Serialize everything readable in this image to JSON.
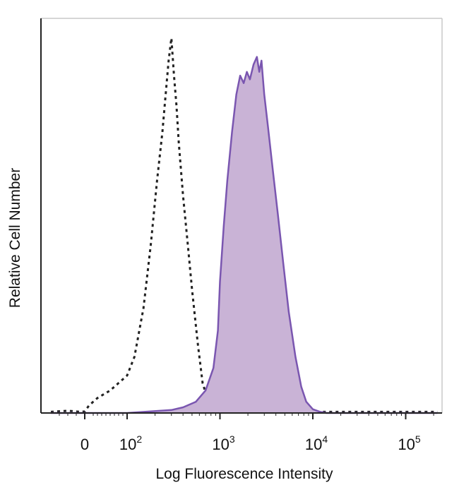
{
  "chart_data": {
    "type": "area",
    "xlabel": "Log Fluorescence Intensity",
    "ylabel": "Relative Cell Number",
    "x_scale": "biexponential (0, then log decades)",
    "xlim": [
      -80,
      220000
    ],
    "ylim": [
      0,
      100
    ],
    "grid": false,
    "legend": "none",
    "x_ticks": [
      {
        "value": 0,
        "base": "0",
        "exp": ""
      },
      {
        "value": 100,
        "base": "10",
        "exp": "2"
      },
      {
        "value": 1000,
        "base": "10",
        "exp": "3"
      },
      {
        "value": 10000,
        "base": "10",
        "exp": "4"
      },
      {
        "value": 100000,
        "base": "10",
        "exp": "5"
      }
    ],
    "series": [
      {
        "style": "dotted-outline",
        "color": "#222222",
        "points": [
          [
            -80,
            0.3
          ],
          [
            -40,
            0.6
          ],
          [
            -10,
            0.3
          ],
          [
            0,
            0.4
          ],
          [
            10,
            2
          ],
          [
            30,
            4
          ],
          [
            60,
            6
          ],
          [
            100,
            10
          ],
          [
            120,
            15
          ],
          [
            150,
            28
          ],
          [
            180,
            45
          ],
          [
            210,
            62
          ],
          [
            240,
            75
          ],
          [
            260,
            85
          ],
          [
            280,
            94
          ],
          [
            300,
            100
          ],
          [
            320,
            90
          ],
          [
            340,
            82
          ],
          [
            360,
            72
          ],
          [
            400,
            58
          ],
          [
            450,
            45
          ],
          [
            500,
            33
          ],
          [
            580,
            18
          ],
          [
            650,
            8
          ],
          [
            750,
            3
          ],
          [
            900,
            1
          ],
          [
            1200,
            0.4
          ],
          [
            5000,
            0.3
          ],
          [
            220000,
            0.3
          ]
        ]
      },
      {
        "style": "filled",
        "color": "#7a56b0",
        "fill": "#c9b3d6",
        "points": [
          [
            -80,
            0
          ],
          [
            100,
            0
          ],
          [
            300,
            0.8
          ],
          [
            400,
            1.5
          ],
          [
            550,
            3
          ],
          [
            700,
            6
          ],
          [
            850,
            12
          ],
          [
            950,
            22
          ],
          [
            1000,
            35
          ],
          [
            1100,
            50
          ],
          [
            1200,
            62
          ],
          [
            1350,
            75
          ],
          [
            1500,
            85
          ],
          [
            1650,
            90
          ],
          [
            1800,
            88
          ],
          [
            1950,
            91
          ],
          [
            2100,
            89
          ],
          [
            2300,
            93
          ],
          [
            2500,
            95
          ],
          [
            2650,
            91
          ],
          [
            2800,
            94
          ],
          [
            3000,
            85
          ],
          [
            3300,
            76
          ],
          [
            3700,
            65
          ],
          [
            4200,
            53
          ],
          [
            4800,
            40
          ],
          [
            5500,
            27
          ],
          [
            6500,
            15
          ],
          [
            7500,
            7
          ],
          [
            8500,
            3
          ],
          [
            10000,
            1
          ],
          [
            12000,
            0.3
          ],
          [
            14000,
            0
          ],
          [
            220000,
            0
          ]
        ]
      }
    ]
  }
}
